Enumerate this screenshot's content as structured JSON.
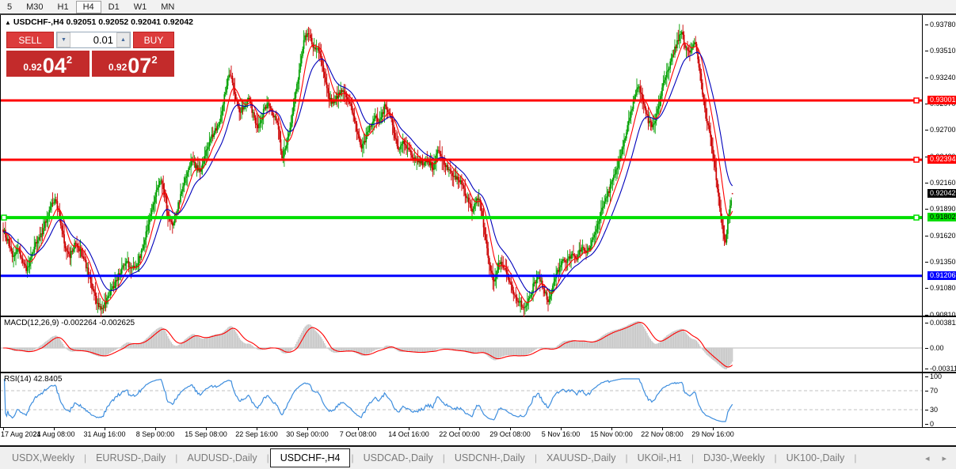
{
  "toolbar": {
    "timeframes": [
      {
        "label": "5",
        "active": false
      },
      {
        "label": "M30",
        "active": false
      },
      {
        "label": "H1",
        "active": false
      },
      {
        "label": "H4",
        "active": true
      },
      {
        "label": "D1",
        "active": false
      },
      {
        "label": "W1",
        "active": false
      },
      {
        "label": "MN",
        "active": false
      }
    ]
  },
  "chart": {
    "title": {
      "arrow": "▲",
      "symbol": "USDCHF-,H4",
      "ohlc": "0.92051 0.92052 0.92041 0.92042"
    },
    "trade_panel": {
      "sell_label": "SELL",
      "buy_label": "BUY",
      "volume": "0.01",
      "sell_price_small": "0.92",
      "sell_price_big": "04",
      "sell_price_sup": "2",
      "buy_price_small": "0.92",
      "buy_price_big": "07",
      "buy_price_sup": "2"
    },
    "price_axis_ticks": [
      "0.93780",
      "0.93510",
      "0.93240",
      "0.92970",
      "0.92700",
      "0.92430",
      "0.92160",
      "0.91890",
      "0.91620",
      "0.91350",
      "0.91080",
      "0.90810"
    ],
    "current_price_label": "0.92042"
  },
  "chart_data": {
    "type": "candlestick",
    "symbol": "USDCHF-",
    "timeframe": "H4",
    "current_ohlc": {
      "open": 0.92051,
      "high": 0.92052,
      "low": 0.92041,
      "close": 0.92042
    },
    "ylim": [
      0.90782,
      0.93876
    ],
    "y_ticks": [
      0.9378,
      0.9351,
      0.9324,
      0.9297,
      0.927,
      0.9243,
      0.9216,
      0.9189,
      0.9162,
      0.9135,
      0.9108,
      0.9081
    ],
    "x_labels": [
      "17 Aug 2021",
      "24 Aug 08:00",
      "31 Aug 16:00",
      "8 Sep 00:00",
      "15 Sep 08:00",
      "22 Sep 16:00",
      "30 Sep 00:00",
      "7 Oct 08:00",
      "14 Oct 16:00",
      "22 Oct 00:00",
      "29 Oct 08:00",
      "5 Nov 16:00",
      "15 Nov 00:00",
      "22 Nov 08:00",
      "29 Nov 16:00"
    ],
    "horizontal_lines": [
      {
        "value": 0.93001,
        "label": "0.93001",
        "color": "#FF0000",
        "width": 3,
        "right_square": true,
        "left_square": false,
        "text": "#fff"
      },
      {
        "value": 0.92394,
        "label": "0.92394",
        "color": "#FF0000",
        "width": 3,
        "right_square": true,
        "left_square": false,
        "text": "#fff"
      },
      {
        "value": 0.91802,
        "label": "0.91802",
        "color": "#00DE00",
        "width": 4,
        "right_square": true,
        "left_square": true,
        "text": "#000"
      },
      {
        "value": 0.91206,
        "label": "0.91206",
        "color": "#0000FF",
        "width": 3,
        "right_square": false,
        "left_square": false,
        "text": "#fff"
      }
    ],
    "moving_averages": [
      {
        "period": 9,
        "color": "#FF0000"
      },
      {
        "period": 22,
        "color": "#0000BB"
      }
    ],
    "price_path": [
      [
        4,
        0.9168
      ],
      [
        10,
        0.9155
      ],
      [
        16,
        0.9138
      ],
      [
        22,
        0.915
      ],
      [
        28,
        0.9135
      ],
      [
        34,
        0.9125
      ],
      [
        40,
        0.9142
      ],
      [
        46,
        0.9155
      ],
      [
        52,
        0.9162
      ],
      [
        58,
        0.9178
      ],
      [
        64,
        0.9192
      ],
      [
        70,
        0.9198
      ],
      [
        76,
        0.9178
      ],
      [
        82,
        0.9152
      ],
      [
        88,
        0.914
      ],
      [
        94,
        0.9152
      ],
      [
        100,
        0.9148
      ],
      [
        106,
        0.9138
      ],
      [
        112,
        0.9122
      ],
      [
        118,
        0.9102
      ],
      [
        124,
        0.909
      ],
      [
        130,
        0.9088
      ],
      [
        136,
        0.9098
      ],
      [
        142,
        0.9108
      ],
      [
        148,
        0.9118
      ],
      [
        154,
        0.9128
      ],
      [
        160,
        0.9135
      ],
      [
        166,
        0.9126
      ],
      [
        172,
        0.9132
      ],
      [
        178,
        0.9142
      ],
      [
        184,
        0.9162
      ],
      [
        190,
        0.9184
      ],
      [
        196,
        0.9202
      ],
      [
        202,
        0.9218
      ],
      [
        208,
        0.9205
      ],
      [
        212,
        0.918
      ],
      [
        218,
        0.9172
      ],
      [
        224,
        0.919
      ],
      [
        230,
        0.9208
      ],
      [
        236,
        0.9225
      ],
      [
        242,
        0.924
      ],
      [
        248,
        0.9232
      ],
      [
        254,
        0.9228
      ],
      [
        260,
        0.9248
      ],
      [
        266,
        0.9262
      ],
      [
        272,
        0.927
      ],
      [
        278,
        0.9282
      ],
      [
        284,
        0.9308
      ],
      [
        290,
        0.933
      ],
      [
        296,
        0.931
      ],
      [
        302,
        0.9288
      ],
      [
        308,
        0.9295
      ],
      [
        314,
        0.9302
      ],
      [
        320,
        0.9285
      ],
      [
        326,
        0.9272
      ],
      [
        332,
        0.9288
      ],
      [
        338,
        0.9296
      ],
      [
        344,
        0.9288
      ],
      [
        350,
        0.928
      ],
      [
        356,
        0.9242
      ],
      [
        362,
        0.9258
      ],
      [
        368,
        0.928
      ],
      [
        374,
        0.931
      ],
      [
        380,
        0.9345
      ],
      [
        386,
        0.9368
      ],
      [
        390,
        0.9368
      ],
      [
        396,
        0.9352
      ],
      [
        402,
        0.9356
      ],
      [
        408,
        0.933
      ],
      [
        414,
        0.9305
      ],
      [
        420,
        0.9298
      ],
      [
        426,
        0.9305
      ],
      [
        432,
        0.9312
      ],
      [
        438,
        0.93
      ],
      [
        444,
        0.9292
      ],
      [
        450,
        0.927
      ],
      [
        456,
        0.9252
      ],
      [
        462,
        0.9262
      ],
      [
        468,
        0.9275
      ],
      [
        474,
        0.9282
      ],
      [
        480,
        0.9278
      ],
      [
        486,
        0.9295
      ],
      [
        492,
        0.9288
      ],
      [
        498,
        0.9262
      ],
      [
        504,
        0.925
      ],
      [
        510,
        0.9258
      ],
      [
        516,
        0.9248
      ],
      [
        522,
        0.9242
      ],
      [
        528,
        0.9238
      ],
      [
        534,
        0.9236
      ],
      [
        540,
        0.924
      ],
      [
        546,
        0.923
      ],
      [
        552,
        0.9248
      ],
      [
        558,
        0.9242
      ],
      [
        564,
        0.9232
      ],
      [
        570,
        0.9225
      ],
      [
        576,
        0.922
      ],
      [
        582,
        0.9215
      ],
      [
        590,
        0.92
      ],
      [
        596,
        0.9185
      ],
      [
        602,
        0.9202
      ],
      [
        606,
        0.9195
      ],
      [
        612,
        0.9165
      ],
      [
        618,
        0.9128
      ],
      [
        624,
        0.9112
      ],
      [
        630,
        0.9135
      ],
      [
        636,
        0.9128
      ],
      [
        642,
        0.9118
      ],
      [
        648,
        0.9102
      ],
      [
        654,
        0.9095
      ],
      [
        662,
        0.9088
      ],
      [
        668,
        0.9096
      ],
      [
        674,
        0.9112
      ],
      [
        680,
        0.912
      ],
      [
        686,
        0.9108
      ],
      [
        692,
        0.9095
      ],
      [
        698,
        0.9108
      ],
      [
        704,
        0.9125
      ],
      [
        710,
        0.9138
      ],
      [
        716,
        0.9136
      ],
      [
        722,
        0.9142
      ],
      [
        728,
        0.9138
      ],
      [
        734,
        0.915
      ],
      [
        740,
        0.9143
      ],
      [
        746,
        0.9152
      ],
      [
        752,
        0.9164
      ],
      [
        758,
        0.9182
      ],
      [
        764,
        0.9198
      ],
      [
        770,
        0.921
      ],
      [
        776,
        0.9225
      ],
      [
        782,
        0.924
      ],
      [
        788,
        0.9258
      ],
      [
        794,
        0.928
      ],
      [
        800,
        0.93
      ],
      [
        806,
        0.9315
      ],
      [
        812,
        0.93
      ],
      [
        818,
        0.928
      ],
      [
        824,
        0.9272
      ],
      [
        830,
        0.929
      ],
      [
        836,
        0.9312
      ],
      [
        842,
        0.933
      ],
      [
        848,
        0.9342
      ],
      [
        854,
        0.9358
      ],
      [
        860,
        0.9372
      ],
      [
        866,
        0.9352
      ],
      [
        872,
        0.9348
      ],
      [
        878,
        0.936
      ],
      [
        884,
        0.9325
      ],
      [
        890,
        0.9288
      ],
      [
        896,
        0.9265
      ],
      [
        902,
        0.9235
      ],
      [
        908,
        0.9195
      ],
      [
        912,
        0.9168
      ],
      [
        916,
        0.9155
      ],
      [
        920,
        0.9185
      ],
      [
        925,
        0.92042
      ]
    ],
    "indicators": [
      {
        "name": "MACD",
        "params": "12,26,9",
        "main": -0.002264,
        "signal": -0.002625,
        "axis_max": 0.003811,
        "axis_min": -0.003115
      },
      {
        "name": "RSI",
        "params": "14",
        "value": 42.8405,
        "levels": [
          70,
          30
        ],
        "axis": [
          100,
          70,
          30,
          0
        ]
      }
    ]
  },
  "macd_panel": {
    "label": "MACD(12,26,9)",
    "values": "-0.002264 -0.002625",
    "axis_labels": [
      "0.003811",
      "0.00",
      "-0.003115"
    ]
  },
  "rsi_panel": {
    "label": "RSI(14)",
    "value": "42.8405",
    "axis_labels": [
      "100",
      "70",
      "30",
      "0"
    ]
  },
  "tabs": {
    "items": [
      "USDX,Weekly",
      "EURUSD-,Daily",
      "AUDUSD-,Daily",
      "USDCHF-,H4",
      "USDCAD-,Daily",
      "USDCNH-,Daily",
      "XAUUSD-,Daily",
      "UKOil-,H1",
      "DJ30-,Weekly",
      "UK100-,Daily"
    ],
    "active_index": 3
  },
  "colors": {
    "bull": "#00A000",
    "bear": "#CC0000",
    "macd_hist": "#C9C9C9",
    "macd_signal": "#FF0000",
    "rsi_line": "#3E8EDE",
    "rsi_level": "#C0C0C0",
    "current_price_bg": "#000000",
    "trade_button": "#DC3B3B",
    "price_box": "#C32B2B"
  }
}
